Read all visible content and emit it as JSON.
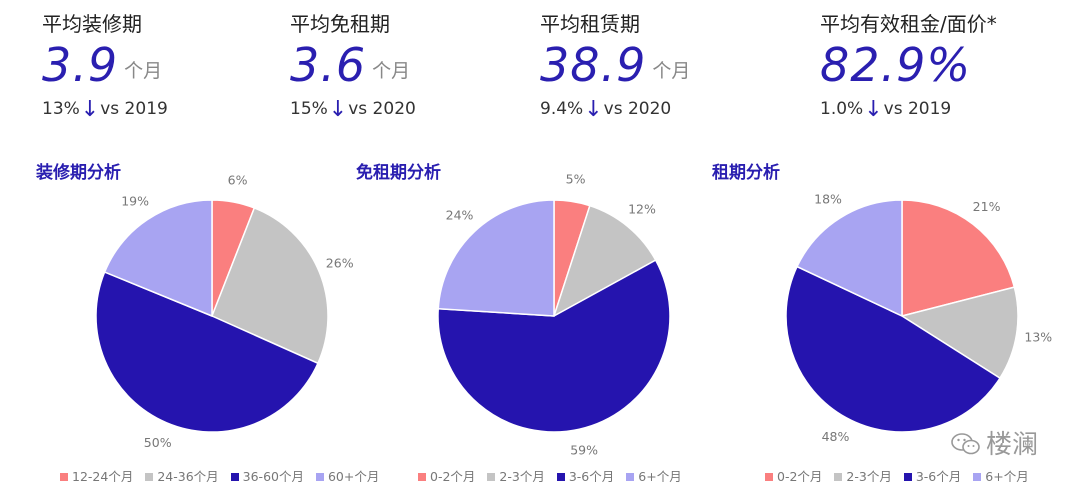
{
  "kpis": [
    {
      "title": "平均装修期",
      "value": "3.9",
      "unit": "个月",
      "change_pct": "13%",
      "change_vs": "vs 2019"
    },
    {
      "title": "平均免租期",
      "value": "3.6",
      "unit": "个月",
      "change_pct": "15%",
      "change_vs": "vs 2020"
    },
    {
      "title": "平均租赁期",
      "value": "38.9",
      "unit": "个月",
      "change_pct": "9.4%",
      "change_vs": "vs 2020"
    },
    {
      "title": "平均有效租金/面价*",
      "value": "82.9%",
      "unit": "",
      "change_pct": "1.0%",
      "change_vs": "vs 2019"
    }
  ],
  "colors": {
    "accent": "#2a1fb0",
    "pink": "#fa7f7f",
    "gray": "#c4c4c4",
    "navy": "#2514ae",
    "lavender": "#a8a4f2"
  },
  "watermark": {
    "text": "楼澜",
    "icon": "wechat-icon"
  },
  "chart_data": [
    {
      "type": "pie",
      "title": "装修期分析",
      "categories": [
        "12-24个月",
        "24-36个月",
        "36-60个月",
        "60+个月"
      ],
      "values": [
        6,
        26,
        50,
        19
      ],
      "labels": [
        "6%",
        "26%",
        "50%",
        "19%"
      ],
      "colors": [
        "#fa7f7f",
        "#c4c4c4",
        "#2514ae",
        "#a8a4f2"
      ],
      "legend_position": "bottom"
    },
    {
      "type": "pie",
      "title": "免租期分析",
      "categories": [
        "0-2个月",
        "2-3个月",
        "3-6个月",
        "6+个月"
      ],
      "values": [
        5,
        12,
        59,
        24
      ],
      "labels": [
        "5%",
        "12%",
        "59%",
        "24%"
      ],
      "colors": [
        "#fa7f7f",
        "#c4c4c4",
        "#2514ae",
        "#a8a4f2"
      ],
      "legend_position": "bottom"
    },
    {
      "type": "pie",
      "title": "租期分析",
      "categories": [
        "0-2个月",
        "2-3个月",
        "3-6个月",
        "6+个月"
      ],
      "values": [
        21,
        13,
        48,
        18
      ],
      "labels": [
        "21%",
        "13%",
        "48%",
        "18%"
      ],
      "colors": [
        "#fa7f7f",
        "#c4c4c4",
        "#2514ae",
        "#a8a4f2"
      ],
      "legend_position": "bottom"
    }
  ]
}
